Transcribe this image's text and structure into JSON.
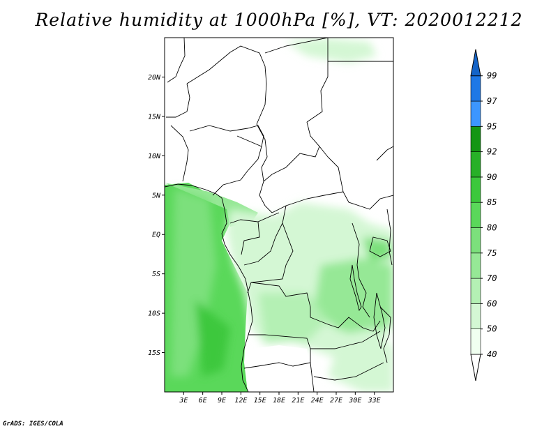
{
  "title": "Relative humidity at 1000hPa [%], VT: 2020012212",
  "credit": "GrADS: IGES/COLA",
  "map": {
    "lon_range": [
      0,
      36
    ],
    "lat_range": [
      -20,
      25
    ],
    "lon_ticks": [
      {
        "value": 3,
        "label": "3E"
      },
      {
        "value": 6,
        "label": "6E"
      },
      {
        "value": 9,
        "label": "9E"
      },
      {
        "value": 12,
        "label": "12E"
      },
      {
        "value": 15,
        "label": "15E"
      },
      {
        "value": 18,
        "label": "18E"
      },
      {
        "value": 21,
        "label": "21E"
      },
      {
        "value": 24,
        "label": "24E"
      },
      {
        "value": 27,
        "label": "27E"
      },
      {
        "value": 30,
        "label": "30E"
      },
      {
        "value": 33,
        "label": "33E"
      }
    ],
    "lat_ticks": [
      {
        "value": 20,
        "label": "20N"
      },
      {
        "value": 15,
        "label": "15N"
      },
      {
        "value": 10,
        "label": "10N"
      },
      {
        "value": 5,
        "label": "5N"
      },
      {
        "value": 0,
        "label": "EQ"
      },
      {
        "value": -5,
        "label": "5S"
      },
      {
        "value": -10,
        "label": "10S"
      },
      {
        "value": -15,
        "label": "15S"
      }
    ]
  },
  "colorbar": {
    "levels": [
      {
        "label": "40",
        "color": "#f0fff0"
      },
      {
        "label": "50",
        "color": "#d4f7d4"
      },
      {
        "label": "60",
        "color": "#b4f0b4"
      },
      {
        "label": "70",
        "color": "#96e896"
      },
      {
        "label": "75",
        "color": "#7ce07c"
      },
      {
        "label": "80",
        "color": "#5ad85a"
      },
      {
        "label": "85",
        "color": "#3cc83c"
      },
      {
        "label": "90",
        "color": "#28b028"
      },
      {
        "label": "92",
        "color": "#149614"
      },
      {
        "label": "95",
        "color": "#3c96ff"
      },
      {
        "label": "97",
        "color": "#1e78e6"
      },
      {
        "label": "99",
        "color": "#1464c8"
      }
    ],
    "below_color": "#ffffff",
    "above_color": "#1464c8"
  }
}
